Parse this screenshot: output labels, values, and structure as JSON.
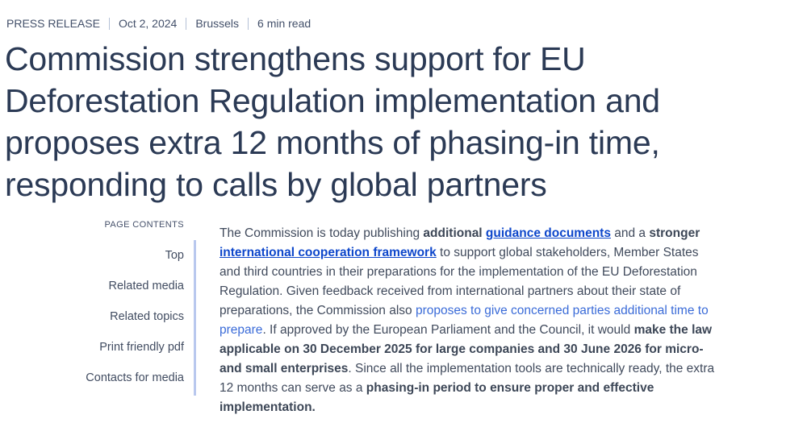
{
  "meta": {
    "label": "PRESS RELEASE",
    "date": "Oct 2, 2024",
    "location": "Brussels",
    "read_time": "6 min read"
  },
  "header": {
    "title_lines": [
      "Commission strengthens support for EU",
      "Deforestation Regulation implementation and",
      "proposes extra 12 months of phasing-in time,",
      "responding to calls by global partners"
    ]
  },
  "toc": {
    "heading": "PAGE CONTENTS",
    "items": [
      {
        "label": "Top"
      },
      {
        "label": "Related media"
      },
      {
        "label": "Related topics"
      },
      {
        "label": "Print friendly pdf"
      },
      {
        "label": "Contacts for media"
      }
    ]
  },
  "article": {
    "lines": [
      [
        {
          "t": "The Commission is today publishing ",
          "s": "n"
        },
        {
          "t": "additional ",
          "s": "b"
        },
        {
          "t": "guidance documents",
          "s": "lb"
        },
        {
          "t": " and a ",
          "s": "n"
        },
        {
          "t": "stronger",
          "s": "b"
        }
      ],
      [
        {
          "t": "international cooperation framework",
          "s": "lb"
        },
        {
          "t": " to support global stakeholders, Member States",
          "s": "n"
        }
      ],
      [
        {
          "t": "and third countries in their preparations for the implementation of the EU Deforestation",
          "s": "n"
        }
      ],
      [
        {
          "t": "Regulation. Given feedback received from international partners about their state of",
          "s": "n"
        }
      ],
      [
        {
          "t": "preparations, the Commission also ",
          "s": "n"
        },
        {
          "t": "proposes to give concerned parties additional time to",
          "s": "lp"
        }
      ],
      [
        {
          "t": "prepare",
          "s": "lp"
        },
        {
          "t": ". If approved by the European Parliament and the Council, it would ",
          "s": "n"
        },
        {
          "t": "make the law",
          "s": "b"
        }
      ],
      [
        {
          "t": "applicable on 30 December 2025 for large companies and 30 June 2026 for micro-",
          "s": "b"
        }
      ],
      [
        {
          "t": "and small enterprises",
          "s": "b"
        },
        {
          "t": ". Since all the implementation tools are technically ready, the extra",
          "s": "n"
        }
      ],
      [
        {
          "t": "12 months can serve as a ",
          "s": "n"
        },
        {
          "t": "phasing-in period to ensure proper and effective",
          "s": "b"
        }
      ],
      [
        {
          "t": "implementation.",
          "s": "b"
        }
      ]
    ]
  },
  "colors": {
    "title_navy": "#2b3a55",
    "body_text": "#404a5c",
    "link_bold_blue": "#0e47cb",
    "link_plain_blue": "#3a6bd8",
    "toc_rule": "#b9c8ee",
    "meta_separator": "#b4c0d6"
  }
}
